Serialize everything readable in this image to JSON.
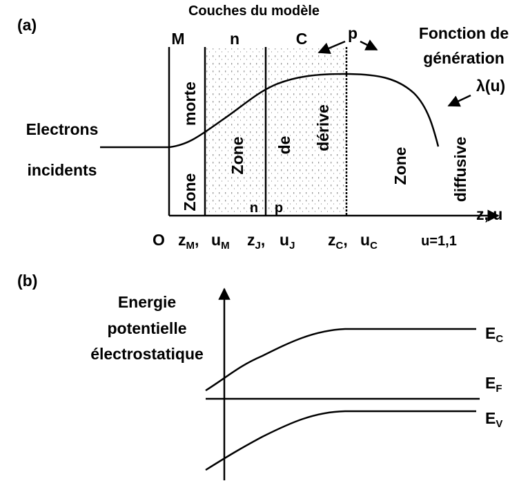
{
  "panel_a": {
    "label": "(a)",
    "title": "Couches du modèle",
    "layers": [
      "M",
      "n",
      "C",
      "p"
    ],
    "generation": [
      "Fonction de",
      "génération"
    ],
    "lambda": "λ(u)",
    "incident": [
      "Electrons",
      "incidents"
    ],
    "zone_labels": [
      "morte",
      "Zone",
      "Zone",
      "de",
      "dérive",
      "Zone",
      "diffusive"
    ],
    "junction_labels": [
      "n",
      "p"
    ],
    "axis_label": "z, u",
    "origin": "O",
    "positions": [
      {
        "base": "z",
        "sub": "M",
        "tail": ","
      },
      {
        "base": "u",
        "sub": "M"
      },
      {
        "base": "z",
        "sub": "J",
        "tail": ","
      },
      {
        "base": "u",
        "sub": "J"
      },
      {
        "base": "z",
        "sub": "C",
        "tail": ","
      },
      {
        "base": "u",
        "sub": "C"
      }
    ],
    "end_position": "u=1,1"
  },
  "panel_b": {
    "label": "(b)",
    "y_label": [
      "Energie",
      "potentielle",
      "électrostatique"
    ],
    "levels": [
      {
        "base": "E",
        "sub": "C"
      },
      {
        "base": "E",
        "sub": "F"
      },
      {
        "base": "E",
        "sub": "V"
      }
    ]
  }
}
